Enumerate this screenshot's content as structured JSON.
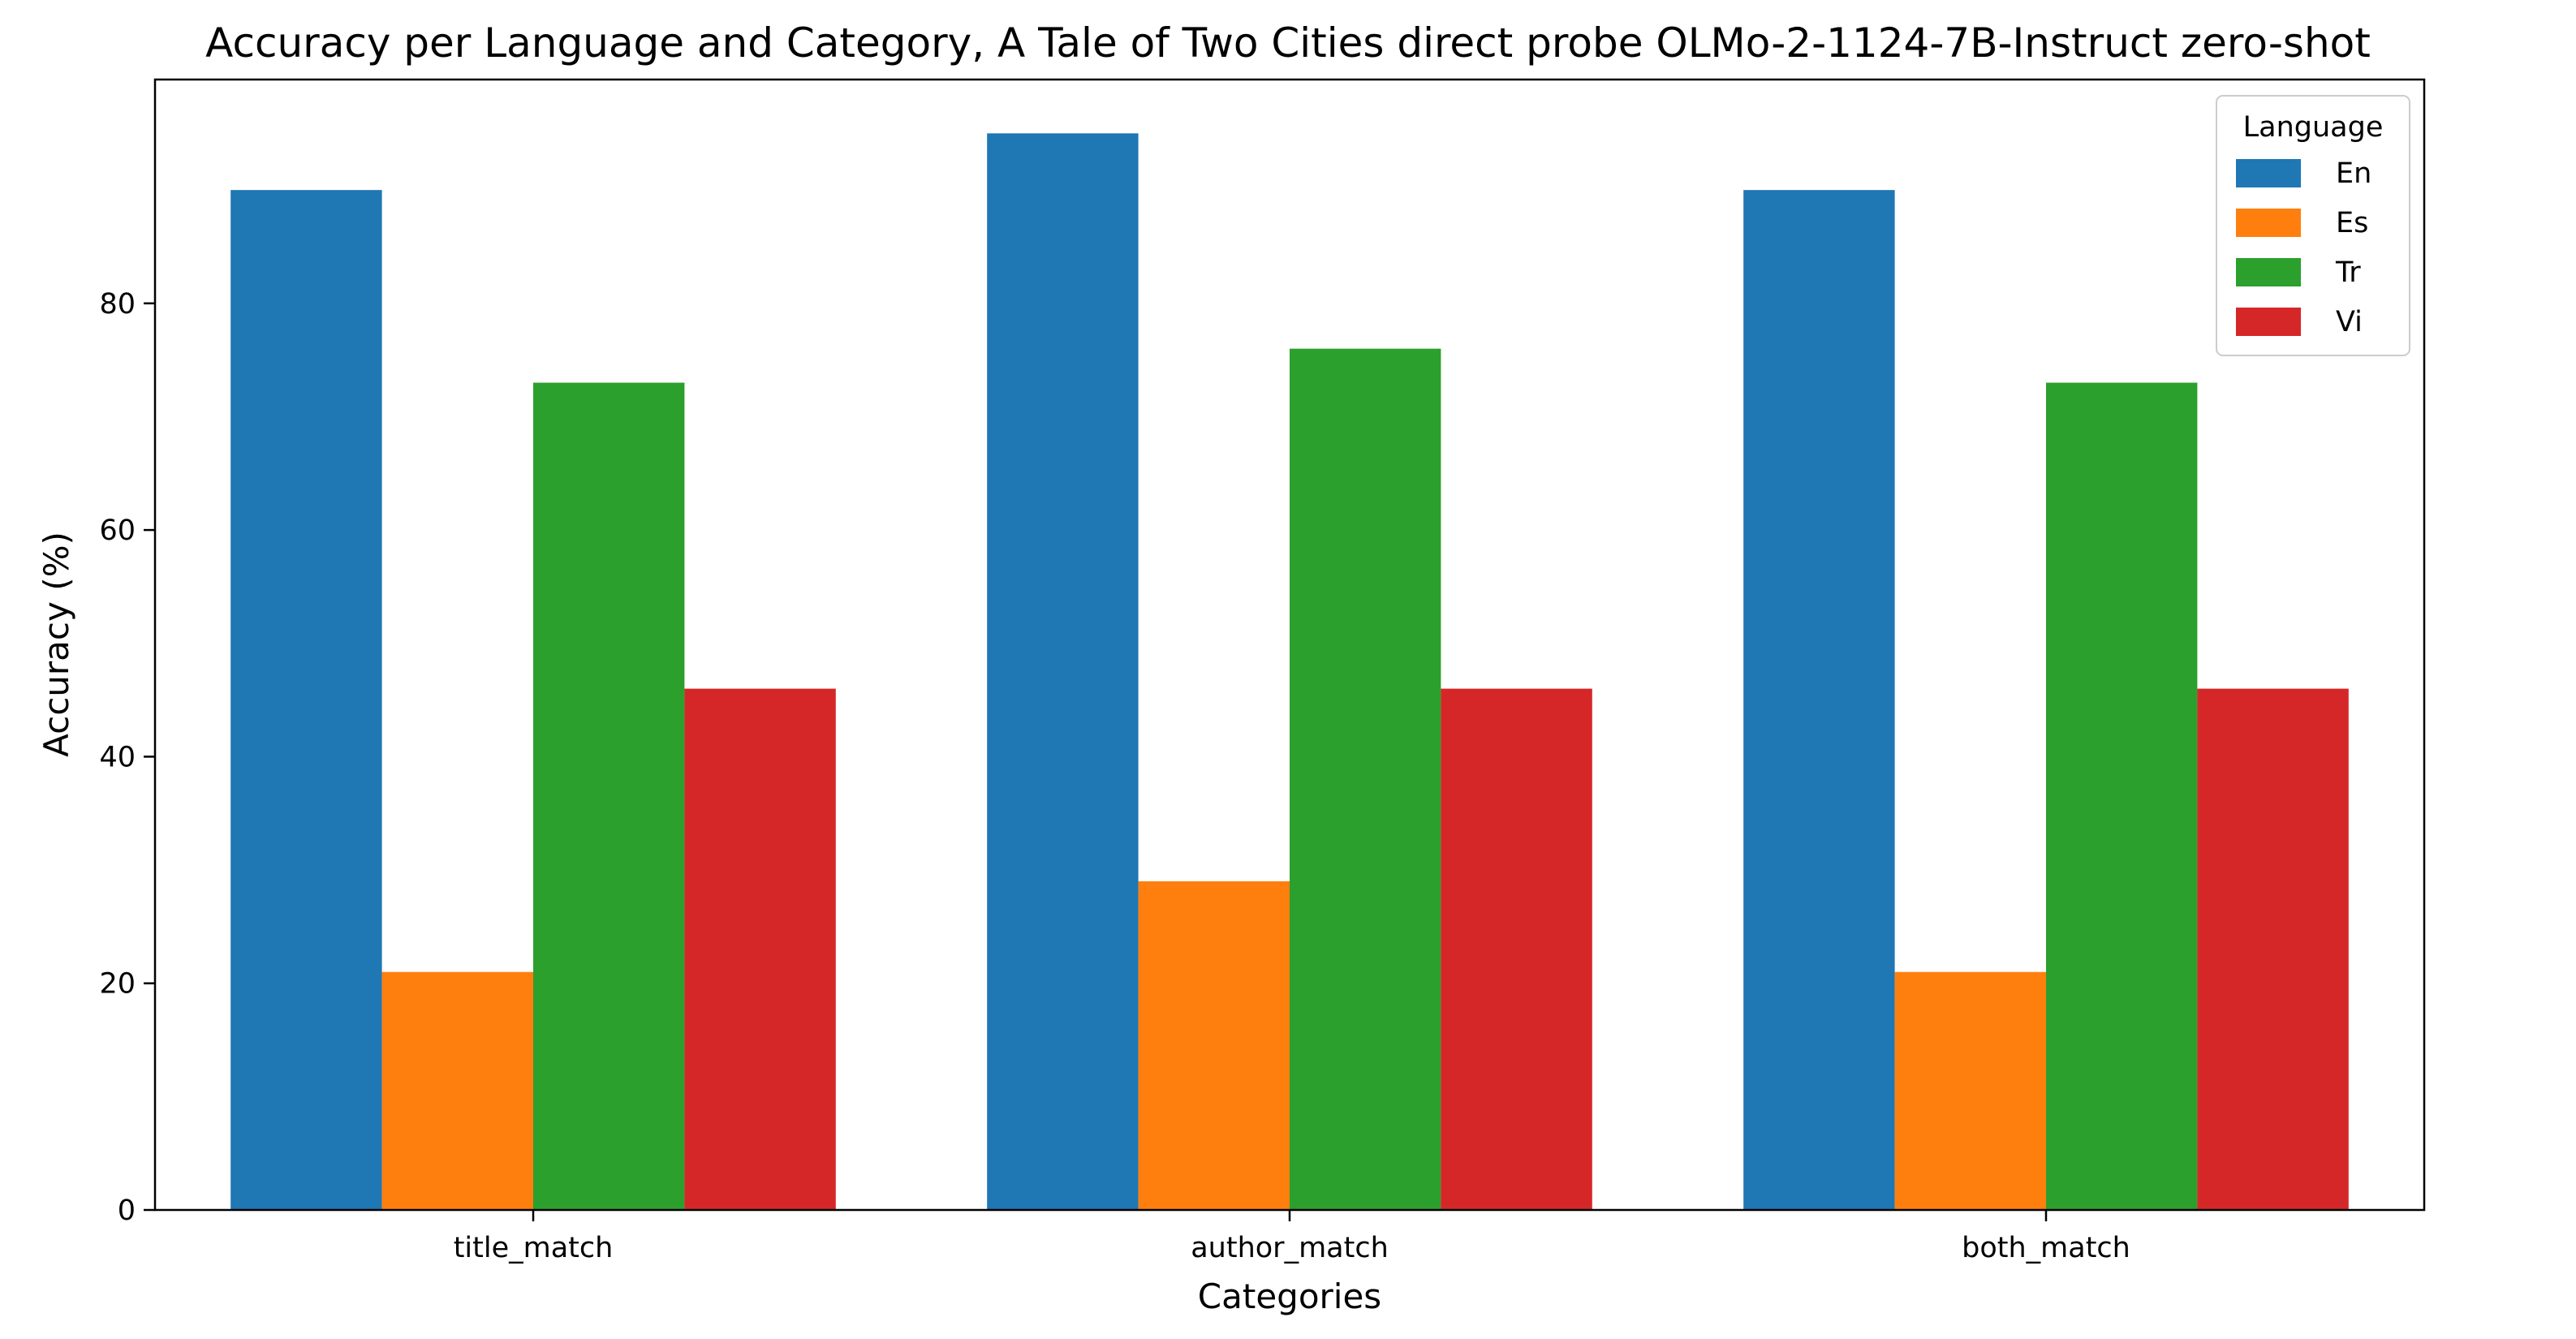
{
  "chart_data": {
    "type": "bar",
    "title": "Accuracy per Language and Category, A Tale of Two Cities direct probe OLMo-2-1124-7B-Instruct zero-shot",
    "xlabel": "Categories",
    "ylabel": "Accuracy (%)",
    "categories": [
      "title_match",
      "author_match",
      "both_match"
    ],
    "series": [
      {
        "name": "En",
        "color": "#1f77b4",
        "values": [
          90,
          95,
          90
        ]
      },
      {
        "name": "Es",
        "color": "#ff7f0e",
        "values": [
          21,
          29,
          21
        ]
      },
      {
        "name": "Tr",
        "color": "#2ca02c",
        "values": [
          73,
          76,
          73
        ]
      },
      {
        "name": "Vi",
        "color": "#d62728",
        "values": [
          46,
          46,
          46
        ]
      }
    ],
    "ylim": [
      0,
      99.75
    ],
    "yticks": [
      0,
      20,
      40,
      60,
      80
    ],
    "legend": {
      "title": "Language",
      "placement": "top-right"
    },
    "grid": false
  }
}
